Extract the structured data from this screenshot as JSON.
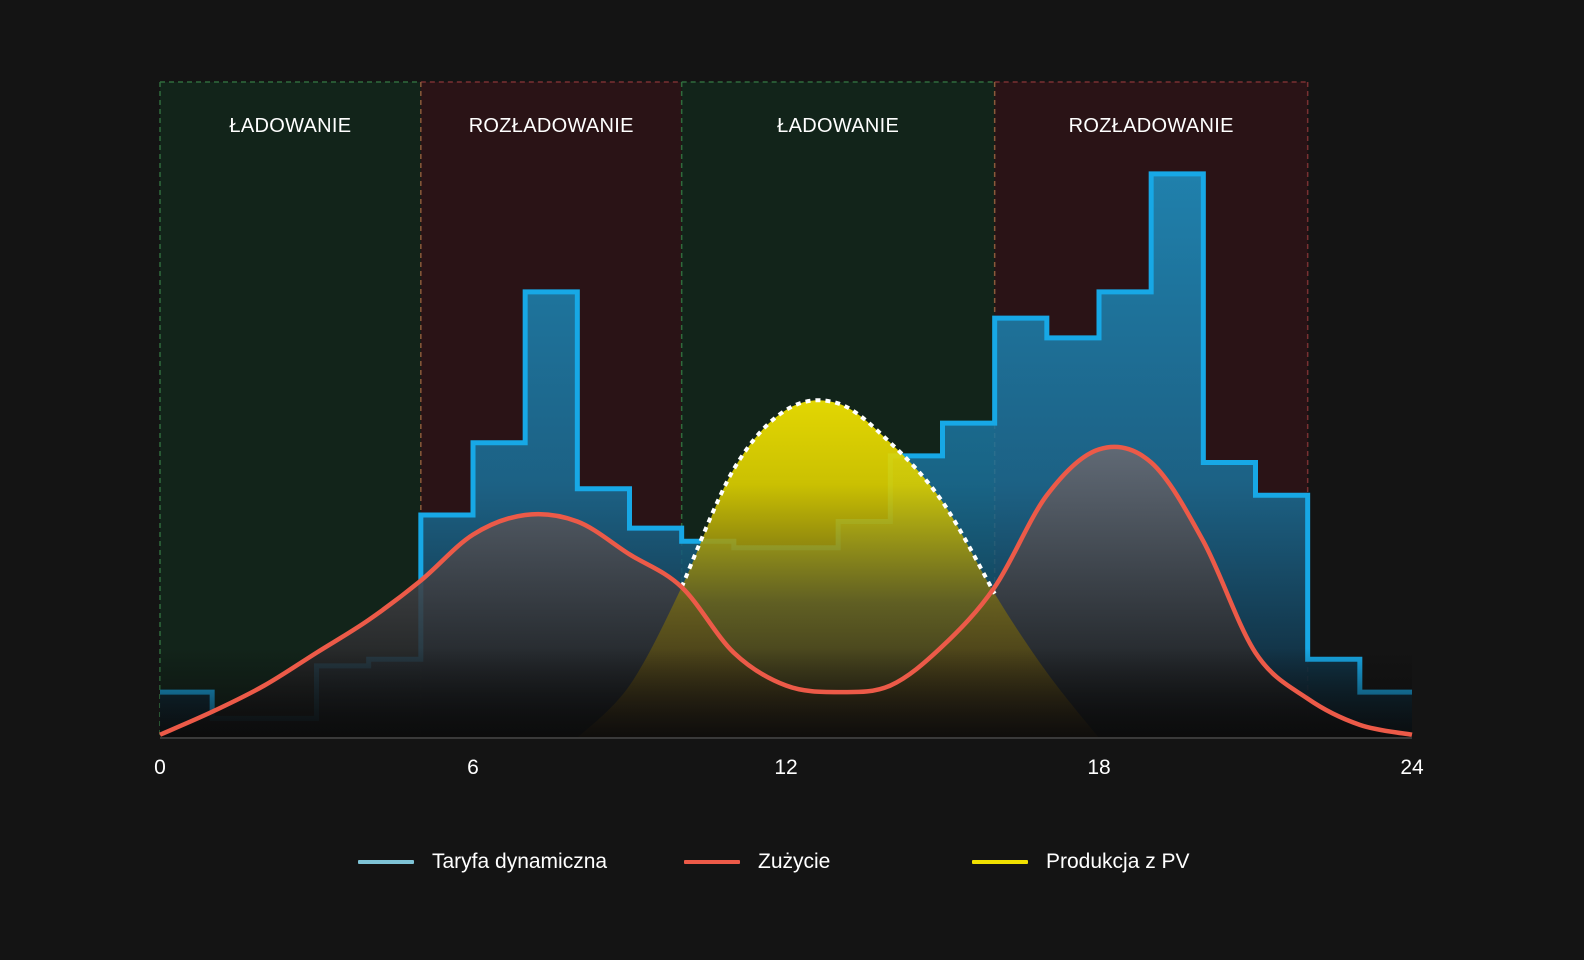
{
  "chart_data": {
    "type": "area",
    "title": "",
    "xlabel": "",
    "ylabel": "",
    "xlim": [
      0,
      24
    ],
    "ylim": [
      0,
      100
    ],
    "x_ticks": [
      "0",
      "6",
      "12",
      "18",
      "24"
    ],
    "grid": false,
    "legend_position": "bottom",
    "zones": [
      {
        "label": "ŁADOWANIE",
        "start": 0,
        "end": 5,
        "kind": "charge"
      },
      {
        "label": "ROZŁADOWANIE",
        "start": 5,
        "end": 10,
        "kind": "discharge"
      },
      {
        "label": "ŁADOWANIE",
        "start": 10,
        "end": 16,
        "kind": "charge"
      },
      {
        "label": "ROZŁADOWANIE",
        "start": 16,
        "end": 22,
        "kind": "discharge"
      }
    ],
    "series": [
      {
        "name": "Taryfa dynamiczna",
        "style": "step",
        "color": "#17a8e6",
        "legend_color": "#7ec3d6",
        "x": [
          0,
          1,
          2,
          3,
          4,
          5,
          6,
          7,
          8,
          9,
          10,
          11,
          12,
          13,
          14,
          15,
          16,
          17,
          18,
          19,
          20,
          21,
          22,
          23,
          24
        ],
        "values": [
          7,
          3,
          3,
          11,
          12,
          34,
          45,
          68,
          38,
          32,
          30,
          29,
          29,
          33,
          43,
          48,
          64,
          61,
          68,
          86,
          42,
          37,
          12,
          7,
          7
        ]
      },
      {
        "name": "Zużycie",
        "style": "line",
        "color": "#ec5a48",
        "x": [
          0,
          1,
          2,
          3,
          4,
          5,
          6,
          7,
          8,
          9,
          10,
          11,
          12,
          13,
          14,
          15,
          16,
          17,
          18,
          19,
          20,
          21,
          22,
          23,
          24
        ],
        "values": [
          0.5,
          4,
          8,
          13,
          18,
          24,
          31,
          34,
          33,
          28,
          23,
          13,
          8,
          7,
          8,
          14,
          23,
          37,
          44,
          42,
          30,
          13,
          6,
          2,
          0.5
        ]
      },
      {
        "name": "Produkcja z PV",
        "style": "area",
        "color": "#f0e000",
        "x": [
          8,
          9,
          10,
          11,
          12,
          13,
          14,
          15,
          16,
          17,
          18
        ],
        "values": [
          0,
          8,
          23,
          41,
          50,
          51,
          45,
          36,
          22,
          10,
          0
        ]
      }
    ]
  }
}
